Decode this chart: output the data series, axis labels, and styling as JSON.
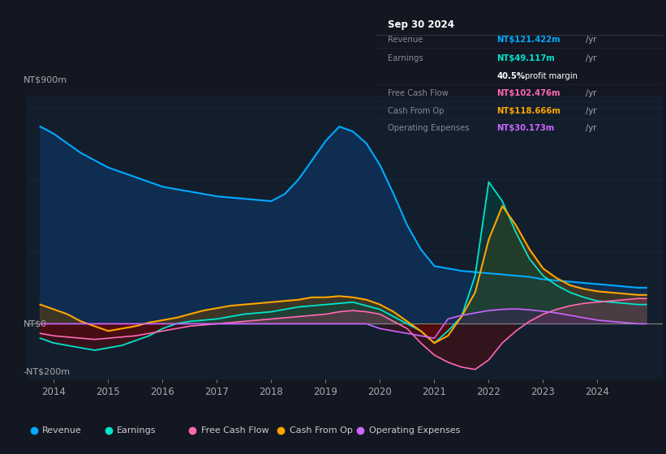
{
  "bg_color": "#131722",
  "plot_bg_color": "#131e2d",
  "colors": {
    "revenue": "#00aaff",
    "earnings": "#00e5cc",
    "free_cash_flow": "#ff69b4",
    "cash_from_op": "#ffa500",
    "operating_expenses": "#cc66ff"
  },
  "xmin": 2013.5,
  "xmax": 2025.2,
  "ymin": -230,
  "ymax": 950,
  "xticks": [
    2014,
    2015,
    2016,
    2017,
    2018,
    2019,
    2020,
    2021,
    2022,
    2023,
    2024
  ],
  "years": [
    2013.75,
    2014.0,
    2014.25,
    2014.5,
    2014.75,
    2015.0,
    2015.25,
    2015.5,
    2015.75,
    2016.0,
    2016.25,
    2016.5,
    2016.75,
    2017.0,
    2017.25,
    2017.5,
    2017.75,
    2018.0,
    2018.25,
    2018.5,
    2018.75,
    2019.0,
    2019.25,
    2019.5,
    2019.75,
    2020.0,
    2020.25,
    2020.5,
    2020.75,
    2021.0,
    2021.25,
    2021.5,
    2021.75,
    2022.0,
    2022.25,
    2022.5,
    2022.75,
    2023.0,
    2023.25,
    2023.5,
    2023.75,
    2024.0,
    2024.25,
    2024.5,
    2024.75,
    2024.9
  ],
  "revenue": [
    820,
    790,
    750,
    710,
    680,
    650,
    630,
    610,
    590,
    570,
    560,
    550,
    540,
    530,
    525,
    520,
    515,
    510,
    540,
    600,
    680,
    760,
    820,
    800,
    750,
    660,
    540,
    410,
    310,
    240,
    230,
    220,
    215,
    210,
    205,
    200,
    195,
    185,
    180,
    175,
    170,
    165,
    160,
    155,
    150,
    150
  ],
  "earnings": [
    -60,
    -80,
    -90,
    -100,
    -110,
    -100,
    -90,
    -70,
    -50,
    -20,
    0,
    10,
    15,
    20,
    30,
    40,
    45,
    50,
    60,
    70,
    75,
    80,
    85,
    90,
    75,
    60,
    30,
    0,
    -30,
    -80,
    -30,
    30,
    200,
    590,
    510,
    380,
    270,
    200,
    160,
    130,
    110,
    95,
    90,
    85,
    80,
    80
  ],
  "free_cash_flow": [
    -40,
    -50,
    -55,
    -60,
    -65,
    -60,
    -55,
    -50,
    -40,
    -30,
    -20,
    -10,
    -5,
    0,
    5,
    10,
    15,
    20,
    25,
    30,
    35,
    40,
    50,
    55,
    50,
    40,
    10,
    -20,
    -80,
    -130,
    -160,
    -180,
    -190,
    -150,
    -80,
    -30,
    10,
    40,
    60,
    75,
    85,
    90,
    95,
    100,
    105,
    105
  ],
  "cash_from_op": [
    80,
    60,
    40,
    10,
    -10,
    -30,
    -20,
    -10,
    5,
    15,
    25,
    40,
    55,
    65,
    75,
    80,
    85,
    90,
    95,
    100,
    110,
    110,
    115,
    110,
    100,
    80,
    50,
    10,
    -30,
    -80,
    -50,
    30,
    130,
    350,
    490,
    410,
    310,
    230,
    190,
    160,
    145,
    135,
    130,
    125,
    120,
    120
  ],
  "operating_expenses": [
    0,
    0,
    0,
    0,
    0,
    0,
    0,
    0,
    0,
    0,
    0,
    0,
    0,
    0,
    0,
    0,
    0,
    0,
    0,
    0,
    0,
    0,
    0,
    0,
    0,
    -20,
    -30,
    -40,
    -50,
    -60,
    20,
    35,
    45,
    55,
    60,
    62,
    58,
    52,
    45,
    35,
    25,
    15,
    10,
    5,
    0,
    0
  ],
  "legend": [
    {
      "label": "Revenue",
      "color": "#00aaff"
    },
    {
      "label": "Earnings",
      "color": "#00e5cc"
    },
    {
      "label": "Free Cash Flow",
      "color": "#ff69b4"
    },
    {
      "label": "Cash From Op",
      "color": "#ffa500"
    },
    {
      "label": "Operating Expenses",
      "color": "#cc66ff"
    }
  ]
}
